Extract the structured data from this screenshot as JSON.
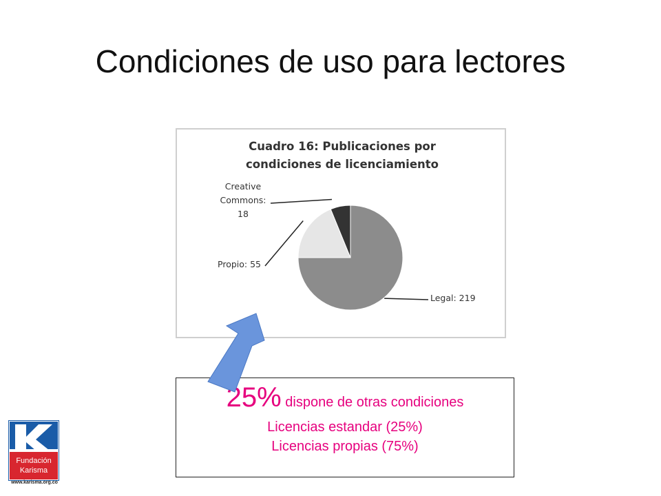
{
  "slide": {
    "title": "Condiciones de uso para lectores"
  },
  "chart_data": {
    "type": "pie",
    "title": "Cuadro 16: Publicaciones por condiciones de licenciamiento",
    "title_lines": [
      "Cuadro 16: Publicaciones por",
      "condiciones de licenciamiento"
    ],
    "slices": [
      {
        "label": "Legal",
        "value": 219,
        "color": "#8c8c8c",
        "label_lines": [
          "Legal: 219"
        ]
      },
      {
        "label": "Propio",
        "value": 55,
        "color": "#e6e6e6",
        "label_lines": [
          "Propio: 55"
        ]
      },
      {
        "label": "Creative Commons",
        "value": 18,
        "color": "#333333",
        "label_lines": [
          "Creative",
          "Commons:",
          "18"
        ]
      }
    ]
  },
  "callout": {
    "big_percent": "25%",
    "big_text": " dispone de otras condiciones",
    "line1": "Licencias estandar (25%)",
    "line2": "Licencias propias (75%)",
    "text_color": "#e6007e"
  },
  "arrow": {
    "color": "#6a95dc",
    "icon": "arrow-up-right-icon"
  },
  "logo": {
    "letter": "K",
    "line1": "Fundación",
    "line2": "Karisma",
    "url": "www.karisma.org.co",
    "blue": "#1a5ca8",
    "red": "#d8262f"
  }
}
